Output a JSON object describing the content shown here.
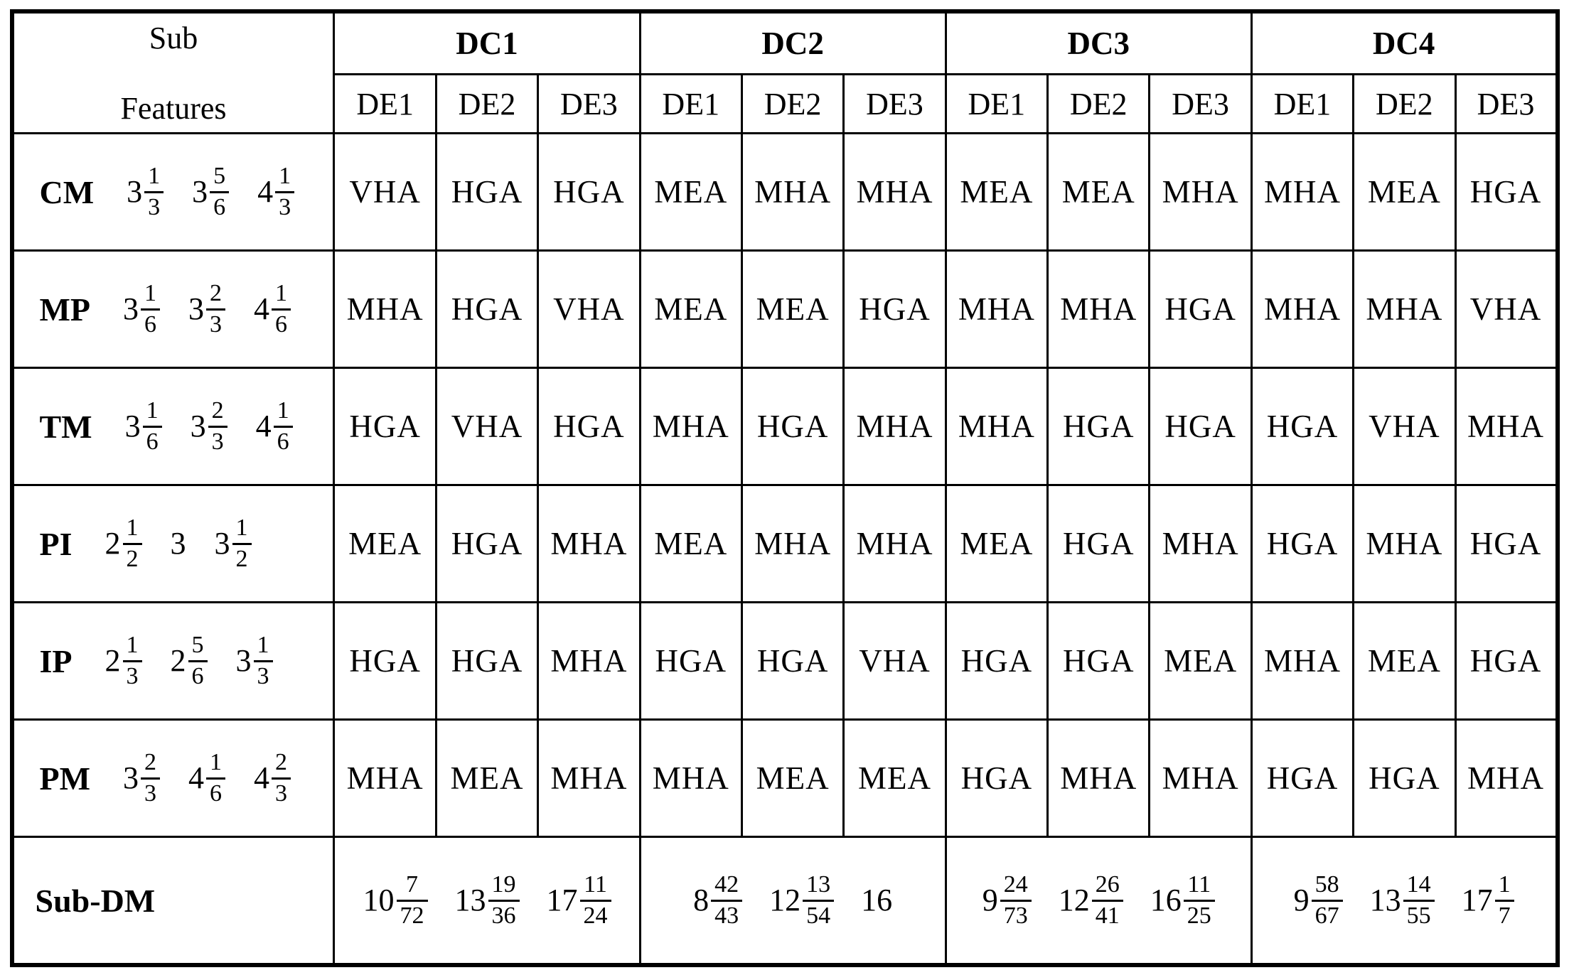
{
  "table": {
    "corner": {
      "line1": "Sub",
      "line2": "Features"
    },
    "groups": [
      {
        "label": "DC1",
        "cols": [
          "DE1",
          "DE2",
          "DE3"
        ]
      },
      {
        "label": "DC2",
        "cols": [
          "DE1",
          "DE2",
          "DE3"
        ]
      },
      {
        "label": "DC3",
        "cols": [
          "DE1",
          "DE2",
          "DE3"
        ]
      },
      {
        "label": "DC4",
        "cols": [
          "DE1",
          "DE2",
          "DE3"
        ]
      }
    ],
    "rows": [
      {
        "feature": "CM",
        "weights": [
          {
            "whole": "3",
            "num": "1",
            "den": "3"
          },
          {
            "whole": "3",
            "num": "5",
            "den": "6"
          },
          {
            "whole": "4",
            "num": "1",
            "den": "3"
          }
        ],
        "grades": [
          "VHA",
          "HGA",
          "HGA",
          "MEA",
          "MHA",
          "MHA",
          "MEA",
          "MEA",
          "MHA",
          "MHA",
          "MEA",
          "HGA"
        ]
      },
      {
        "feature": "MP",
        "weights": [
          {
            "whole": "3",
            "num": "1",
            "den": "6"
          },
          {
            "whole": "3",
            "num": "2",
            "den": "3"
          },
          {
            "whole": "4",
            "num": "1",
            "den": "6"
          }
        ],
        "grades": [
          "MHA",
          "HGA",
          "VHA",
          "MEA",
          "MEA",
          "HGA",
          "MHA",
          "MHA",
          "HGA",
          "MHA",
          "MHA",
          "VHA"
        ]
      },
      {
        "feature": "TM",
        "weights": [
          {
            "whole": "3",
            "num": "1",
            "den": "6"
          },
          {
            "whole": "3",
            "num": "2",
            "den": "3"
          },
          {
            "whole": "4",
            "num": "1",
            "den": "6"
          }
        ],
        "grades": [
          "HGA",
          "VHA",
          "HGA",
          "MHA",
          "HGA",
          "MHA",
          "MHA",
          "HGA",
          "HGA",
          "HGA",
          "VHA",
          "MHA"
        ]
      },
      {
        "feature": "PI",
        "weights": [
          {
            "whole": "2",
            "num": "1",
            "den": "2"
          },
          {
            "whole": "3",
            "num": "",
            "den": ""
          },
          {
            "whole": "3",
            "num": "1",
            "den": "2"
          }
        ],
        "grades": [
          "MEA",
          "HGA",
          "MHA",
          "MEA",
          "MHA",
          "MHA",
          "MEA",
          "HGA",
          "MHA",
          "HGA",
          "MHA",
          "HGA"
        ]
      },
      {
        "feature": "IP",
        "weights": [
          {
            "whole": "2",
            "num": "1",
            "den": "3"
          },
          {
            "whole": "2",
            "num": "5",
            "den": "6"
          },
          {
            "whole": "3",
            "num": "1",
            "den": "3"
          }
        ],
        "grades": [
          "HGA",
          "HGA",
          "MHA",
          "HGA",
          "HGA",
          "VHA",
          "HGA",
          "HGA",
          "MEA",
          "MHA",
          "MEA",
          "HGA"
        ]
      },
      {
        "feature": "PM",
        "weights": [
          {
            "whole": "3",
            "num": "2",
            "den": "3"
          },
          {
            "whole": "4",
            "num": "1",
            "den": "6"
          },
          {
            "whole": "4",
            "num": "2",
            "den": "3"
          }
        ],
        "grades": [
          "MHA",
          "MEA",
          "MHA",
          "MHA",
          "MEA",
          "MEA",
          "HGA",
          "MHA",
          "MHA",
          "HGA",
          "HGA",
          "MHA"
        ]
      }
    ],
    "footer": {
      "label": "Sub-DM",
      "values": [
        [
          {
            "whole": "10",
            "num": "7",
            "den": "72"
          },
          {
            "whole": "13",
            "num": "19",
            "den": "36"
          },
          {
            "whole": "17",
            "num": "11",
            "den": "24"
          }
        ],
        [
          {
            "whole": "8",
            "num": "42",
            "den": "43"
          },
          {
            "whole": "12",
            "num": "13",
            "den": "54"
          },
          {
            "whole": "16",
            "num": "",
            "den": ""
          }
        ],
        [
          {
            "whole": "9",
            "num": "24",
            "den": "73"
          },
          {
            "whole": "12",
            "num": "26",
            "den": "41"
          },
          {
            "whole": "16",
            "num": "11",
            "den": "25"
          }
        ],
        [
          {
            "whole": "9",
            "num": "58",
            "den": "67"
          },
          {
            "whole": "13",
            "num": "14",
            "den": "55"
          },
          {
            "whole": "17",
            "num": "1",
            "den": "7"
          }
        ]
      ]
    }
  },
  "colors": {
    "border": "#000000",
    "background": "#ffffff",
    "text": "#000000"
  }
}
